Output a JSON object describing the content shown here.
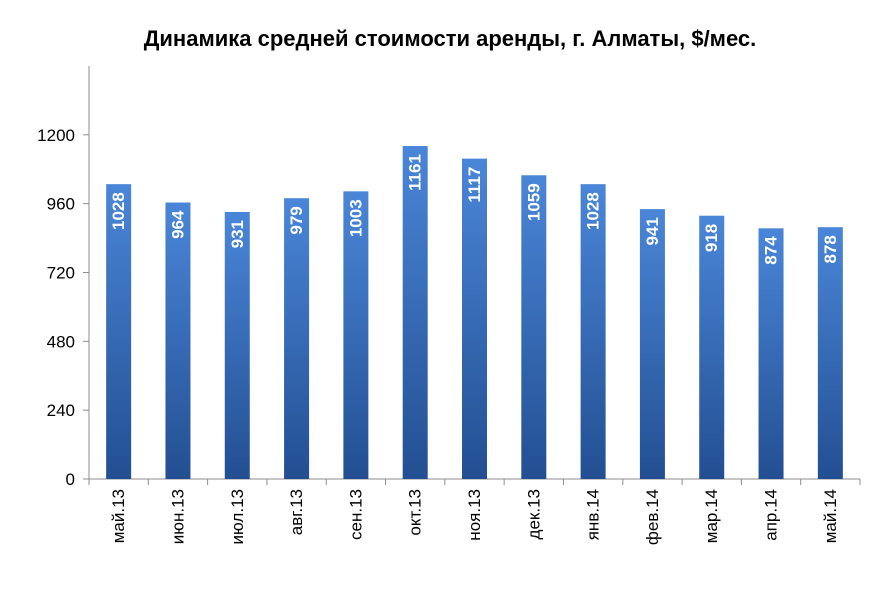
{
  "chart_data": {
    "type": "bar",
    "title": "Динамика средней стоимости аренды, г. Алматы, $/мес.",
    "xlabel": "",
    "ylabel": "",
    "ylim": [
      0,
      1440
    ],
    "yticks": [
      0,
      240,
      480,
      720,
      960,
      1200
    ],
    "grid": false,
    "legend": "none",
    "bar_color_top": "#4a86d8",
    "bar_color_bottom": "#234f92",
    "axis_color": "#8c8c8c",
    "categories": [
      "май.13",
      "июн.13",
      "июл.13",
      "авг.13",
      "сен.13",
      "окт.13",
      "ноя.13",
      "дек.13",
      "янв.14",
      "фев.14",
      "мар.14",
      "апр.14",
      "май.14"
    ],
    "values": [
      1028,
      964,
      931,
      979,
      1003,
      1161,
      1117,
      1059,
      1028,
      941,
      918,
      874,
      878
    ]
  }
}
